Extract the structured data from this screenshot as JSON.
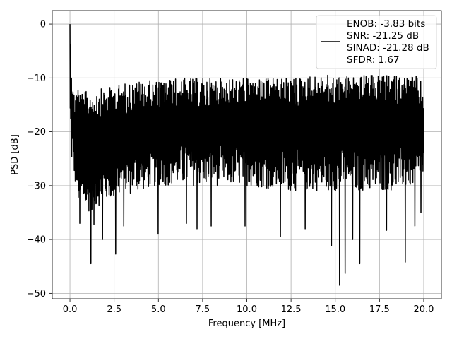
{
  "chart_data": {
    "type": "line",
    "title": "",
    "xlabel": "Frequency [MHz]",
    "ylabel": "PSD [dB]",
    "xlim": [
      -1.0,
      21.0
    ],
    "ylim": [
      -51.0,
      2.5
    ],
    "grid": true,
    "legend_position": "top-right",
    "xticks": [
      0.0,
      2.5,
      5.0,
      7.5,
      10.0,
      12.5,
      15.0,
      17.5,
      20.0
    ],
    "xtick_labels": [
      "0.0",
      "2.5",
      "5.0",
      "7.5",
      "10.0",
      "12.5",
      "15.0",
      "17.5",
      "20.0"
    ],
    "yticks": [
      0,
      -10,
      -20,
      -30,
      -40,
      -50
    ],
    "ytick_labels": [
      "0",
      "−10",
      "−20",
      "−30",
      "−40",
      "−50"
    ],
    "series": [
      {
        "name": "ENOB: -3.83 bits\nSNR: -21.25 dB\nSINAD: -21.28 dB\nSFDR: 1.67",
        "color": "#000000",
        "x_start": 0.0,
        "x_end": 20.0,
        "envelope_upper": [
          [
            0.0,
            0.0
          ],
          [
            0.05,
            -3.5
          ],
          [
            0.1,
            -7
          ],
          [
            0.2,
            -12
          ],
          [
            0.4,
            -11
          ],
          [
            0.7,
            -12.5
          ],
          [
            1.0,
            -12.5
          ],
          [
            1.5,
            -12
          ],
          [
            2.0,
            -12
          ],
          [
            2.5,
            -11.5
          ],
          [
            3.0,
            -11
          ],
          [
            4.0,
            -10.5
          ],
          [
            5.0,
            -10.5
          ],
          [
            6.0,
            -10
          ],
          [
            7.0,
            -10
          ],
          [
            8.0,
            -10
          ],
          [
            10.0,
            -10
          ],
          [
            12.0,
            -10
          ],
          [
            14.0,
            -9.5
          ],
          [
            16.0,
            -9.5
          ],
          [
            18.0,
            -9.5
          ],
          [
            19.5,
            -9.5
          ],
          [
            20.0,
            -11
          ]
        ],
        "envelope_lower": [
          [
            0.0,
            -20
          ],
          [
            0.1,
            -26
          ],
          [
            0.3,
            -30
          ],
          [
            0.5,
            -34
          ],
          [
            1.0,
            -35
          ],
          [
            2.0,
            -33
          ],
          [
            3.0,
            -32
          ],
          [
            5.0,
            -30
          ],
          [
            7.0,
            -30
          ],
          [
            10.0,
            -30
          ],
          [
            12.0,
            -31
          ],
          [
            14.0,
            -31
          ],
          [
            16.0,
            -31
          ],
          [
            18.0,
            -31
          ],
          [
            20.0,
            -30
          ]
        ],
        "annotated_minima": [
          [
            0.55,
            -37
          ],
          [
            1.2,
            -44.5
          ],
          [
            1.35,
            -37.2
          ],
          [
            1.85,
            -40
          ],
          [
            2.6,
            -42.7
          ],
          [
            3.05,
            -37.5
          ],
          [
            5.0,
            -39
          ],
          [
            6.6,
            -37
          ],
          [
            7.2,
            -38
          ],
          [
            8.0,
            -37.5
          ],
          [
            9.9,
            -37.5
          ],
          [
            11.9,
            -39.5
          ],
          [
            13.3,
            -38
          ],
          [
            14.8,
            -41.2
          ],
          [
            15.25,
            -48.5
          ],
          [
            15.55,
            -46.3
          ],
          [
            16.0,
            -40
          ],
          [
            16.4,
            -44.5
          ],
          [
            17.9,
            -38.3
          ],
          [
            18.95,
            -44.2
          ],
          [
            19.5,
            -37.5
          ],
          [
            19.85,
            -35
          ]
        ]
      }
    ]
  }
}
